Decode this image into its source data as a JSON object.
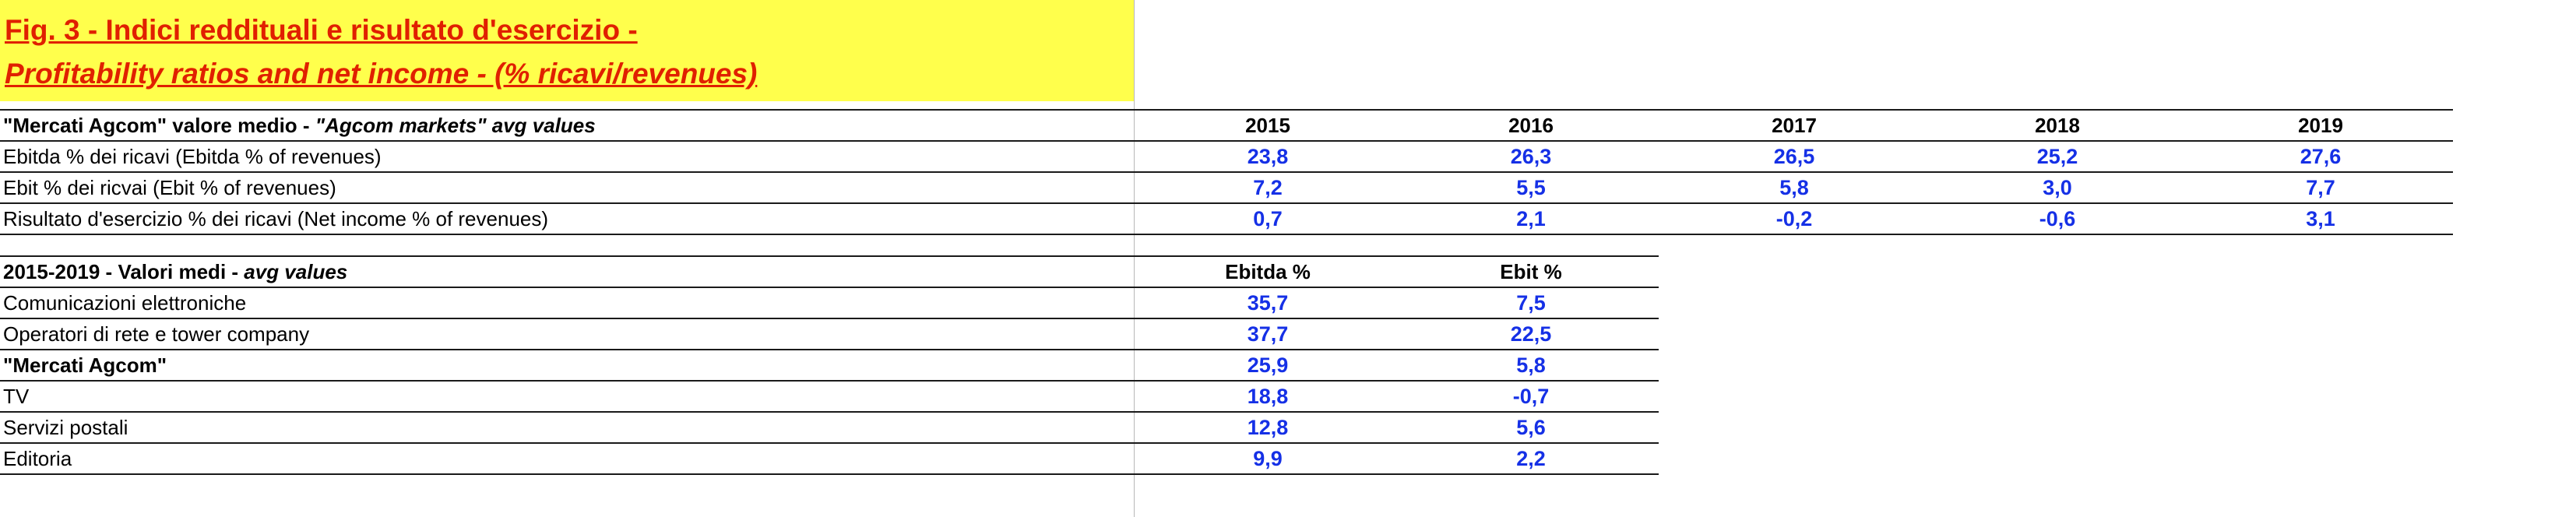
{
  "title": {
    "line1": "Fig. 3 -  Indici reddituali e risultato d'esercizio -",
    "line2": "Profitability ratios and net income - (% ricavi/revenues)"
  },
  "table1": {
    "header_label_plain": "\"Mercati Agcom\" valore medio  - ",
    "header_label_italic": "\"Agcom markets\" avg values",
    "years": [
      "2015",
      "2016",
      "2017",
      "2018",
      "2019"
    ],
    "rows": [
      {
        "label": "Ebitda % dei ricavi (Ebitda % of revenues)",
        "values": [
          "23,8",
          "26,3",
          "26,5",
          "25,2",
          "27,6"
        ]
      },
      {
        "label": "Ebit % dei ricvai (Ebit % of revenues)",
        "values": [
          "7,2",
          "5,5",
          "5,8",
          "3,0",
          "7,7"
        ]
      },
      {
        "label": "Risultato d'esercizio % dei ricavi (Net income % of revenues)",
        "values": [
          "0,7",
          "2,1",
          "-0,2",
          "-0,6",
          "3,1"
        ]
      }
    ]
  },
  "table2": {
    "header_label_plain": "2015-2019 - Valori medi - ",
    "header_label_italic": "avg values",
    "columns": [
      "Ebitda %",
      "Ebit %"
    ],
    "rows": [
      {
        "label": "Comunicazioni elettroniche",
        "bold": false,
        "values": [
          "35,7",
          "7,5"
        ]
      },
      {
        "label": "Operatori di rete e tower company",
        "bold": false,
        "values": [
          "37,7",
          "22,5"
        ]
      },
      {
        "label": "\"Mercati Agcom\"",
        "bold": true,
        "values": [
          "25,9",
          "5,8"
        ]
      },
      {
        "label": "TV",
        "bold": false,
        "values": [
          "18,8",
          "-0,7"
        ]
      },
      {
        "label": "Servizi postali",
        "bold": false,
        "values": [
          "12,8",
          "5,6"
        ]
      },
      {
        "label": "Editoria",
        "bold": false,
        "values": [
          "9,9",
          "2,2"
        ]
      }
    ]
  },
  "colors": {
    "title_text": "#e02000",
    "title_background": "#ffff4c",
    "value_text": "#1530e6"
  }
}
